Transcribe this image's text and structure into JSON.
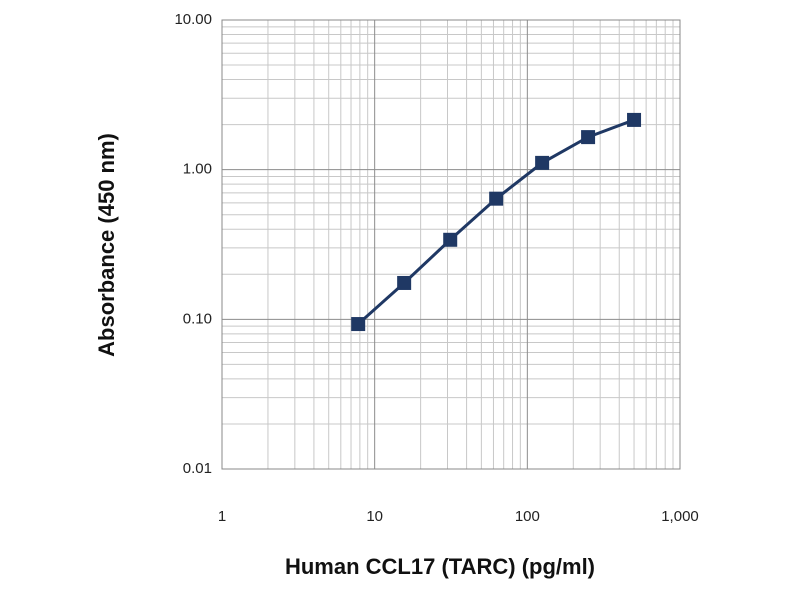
{
  "chart_data": {
    "type": "line",
    "x_label": "Human CCL17 (TARC) (pg/ml)",
    "y_label": "Absorbance (450 nm)",
    "x": [
      7.8,
      15.6,
      31.25,
      62.5,
      125,
      250,
      500
    ],
    "series": [
      {
        "color": "#1f3864",
        "values": [
          0.093,
          0.175,
          0.34,
          0.64,
          1.11,
          1.65,
          2.15
        ]
      }
    ],
    "xlim": [
      1,
      1000
    ],
    "ylim": [
      0.01,
      10
    ],
    "xticks": [
      1,
      10,
      100,
      {
        "value": 1000,
        "label": "1,000"
      }
    ],
    "yticks": [
      {
        "value": 0.01,
        "label": "0.01"
      },
      {
        "value": 0.1,
        "label": "0.10"
      },
      {
        "value": 1,
        "label": "1.00"
      },
      {
        "value": 10,
        "label": "10.00"
      }
    ],
    "xscale": "log",
    "yscale": "log",
    "grid": true,
    "minor_grid": true
  }
}
